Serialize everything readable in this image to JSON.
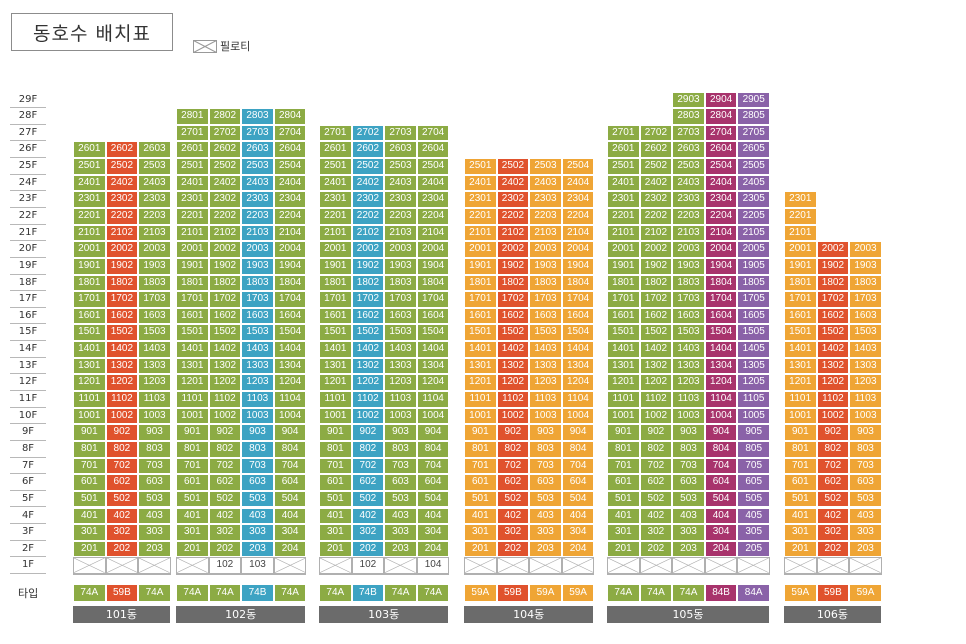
{
  "title": "동호수 배치표",
  "legend": {
    "label": "필로티",
    "icon": "piloti-crossed-box"
  },
  "type_label": "타입",
  "colors": {
    "74A": "#8cab44",
    "74B": "#3da3c3",
    "59A": "#efa535",
    "59B": "#e0522d",
    "84B": "#a8336c",
    "84A": "#8a62a8"
  },
  "floors": [
    "29F",
    "28F",
    "27F",
    "26F",
    "25F",
    "24F",
    "23F",
    "22F",
    "21F",
    "20F",
    "19F",
    "18F",
    "17F",
    "16F",
    "15F",
    "14F",
    "13F",
    "12F",
    "11F",
    "10F",
    "9F",
    "8F",
    "7F",
    "6F",
    "5F",
    "4F",
    "3F",
    "2F",
    "1F"
  ],
  "buildings": [
    {
      "name": "101동",
      "lines": [
        {
          "suffix": "01",
          "type": "74A",
          "top": 26,
          "pilotiLabel": false
        },
        {
          "suffix": "02",
          "type": "59B",
          "top": 26,
          "pilotiLabel": false
        },
        {
          "suffix": "03",
          "type": "74A",
          "top": 26,
          "pilotiLabel": false
        }
      ]
    },
    {
      "name": "102동",
      "lines": [
        {
          "suffix": "01",
          "type": "74A",
          "top": 28,
          "pilotiLabel": false
        },
        {
          "suffix": "02",
          "type": "74A",
          "top": 28,
          "pilotiLabel": true
        },
        {
          "suffix": "03",
          "type": "74B",
          "top": 28,
          "pilotiLabel": true
        },
        {
          "suffix": "04",
          "type": "74A",
          "top": 28,
          "pilotiLabel": false
        }
      ]
    },
    {
      "name": "103동",
      "lines": [
        {
          "suffix": "01",
          "type": "74A",
          "top": 27,
          "pilotiLabel": false
        },
        {
          "suffix": "02",
          "type": "74B",
          "top": 27,
          "pilotiLabel": true
        },
        {
          "suffix": "03",
          "type": "74A",
          "top": 27,
          "pilotiLabel": false
        },
        {
          "suffix": "04",
          "type": "74A",
          "top": 27,
          "pilotiLabel": true
        }
      ]
    },
    {
      "name": "104동",
      "lines": [
        {
          "suffix": "01",
          "type": "59A",
          "top": 25,
          "pilotiLabel": false
        },
        {
          "suffix": "02",
          "type": "59B",
          "top": 25,
          "pilotiLabel": false
        },
        {
          "suffix": "03",
          "type": "59A",
          "top": 25,
          "pilotiLabel": false
        },
        {
          "suffix": "04",
          "type": "59A",
          "top": 25,
          "pilotiLabel": false
        }
      ]
    },
    {
      "name": "105동",
      "lines": [
        {
          "suffix": "01",
          "type": "74A",
          "top": 27,
          "pilotiLabel": false
        },
        {
          "suffix": "02",
          "type": "74A",
          "top": 27,
          "pilotiLabel": false
        },
        {
          "suffix": "03",
          "type": "74A",
          "top": 29,
          "pilotiLabel": false
        },
        {
          "suffix": "04",
          "type": "84B",
          "top": 29,
          "pilotiLabel": false
        },
        {
          "suffix": "05",
          "type": "84A",
          "top": 29,
          "pilotiLabel": false
        }
      ]
    },
    {
      "name": "106동",
      "lines": [
        {
          "suffix": "01",
          "type": "59A",
          "top": 23,
          "pilotiLabel": false
        },
        {
          "suffix": "02",
          "type": "59B",
          "top": 20,
          "pilotiLabel": false
        },
        {
          "suffix": "03",
          "type": "59A",
          "top": 20,
          "pilotiLabel": false
        }
      ]
    }
  ]
}
